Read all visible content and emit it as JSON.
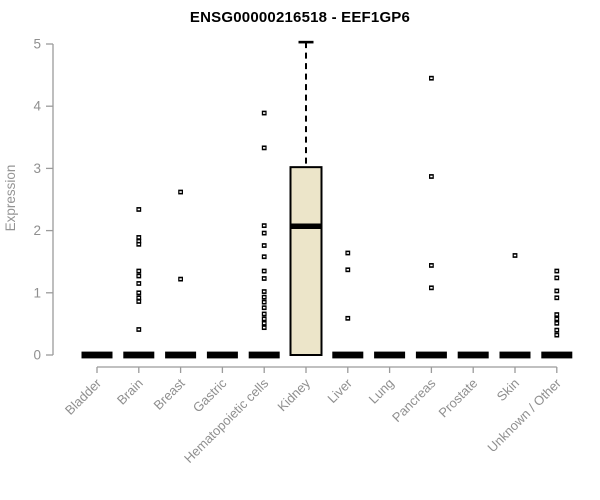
{
  "chart_data": {
    "type": "boxplot",
    "title": "ENSG00000216518 - EEF1GP6",
    "ylabel": "Expression",
    "xlabel": "",
    "ylim": [
      0,
      5
    ],
    "yticks": [
      0,
      1,
      2,
      3,
      4,
      5
    ],
    "grid": false,
    "legend": "none",
    "categories": [
      "Bladder",
      "Brain",
      "Breast",
      "Gastric",
      "Hematopoietic cells",
      "Kidney",
      "Liver",
      "Lung",
      "Pancreas",
      "Prostate",
      "Skin",
      "Unknown / Other"
    ],
    "series": [
      {
        "category": "Bladder",
        "q1": 0,
        "median": 0,
        "q3": 0,
        "whisker_low": 0,
        "whisker_high": 0,
        "outliers": []
      },
      {
        "category": "Brain",
        "q1": 0,
        "median": 0,
        "q3": 0,
        "whisker_low": 0,
        "whisker_high": 0,
        "outliers": [
          2.34,
          1.89,
          1.83,
          1.78,
          1.35,
          1.27,
          1.15,
          1.0,
          0.92,
          0.86,
          0.41
        ]
      },
      {
        "category": "Breast",
        "q1": 0,
        "median": 0,
        "q3": 0,
        "whisker_low": 0,
        "whisker_high": 0,
        "outliers": [
          2.62,
          1.22
        ]
      },
      {
        "category": "Gastric",
        "q1": 0,
        "median": 0,
        "q3": 0,
        "whisker_low": 0,
        "whisker_high": 0,
        "outliers": []
      },
      {
        "category": "Hematopoietic cells",
        "q1": 0,
        "median": 0,
        "q3": 0,
        "whisker_low": 0,
        "whisker_high": 0,
        "outliers": [
          3.89,
          3.33,
          2.08,
          1.96,
          1.76,
          1.58,
          1.35,
          1.23,
          1.02,
          0.93,
          0.85,
          0.76,
          0.66,
          0.58,
          0.51,
          0.44
        ]
      },
      {
        "category": "Kidney",
        "q1": 0,
        "median": 2.07,
        "q3": 3.02,
        "whisker_low": 0,
        "whisker_high": 5.03,
        "outliers": []
      },
      {
        "category": "Liver",
        "q1": 0,
        "median": 0,
        "q3": 0,
        "whisker_low": 0,
        "whisker_high": 0,
        "outliers": [
          1.64,
          1.37,
          0.59
        ]
      },
      {
        "category": "Lung",
        "q1": 0,
        "median": 0,
        "q3": 0,
        "whisker_low": 0,
        "whisker_high": 0,
        "outliers": []
      },
      {
        "category": "Pancreas",
        "q1": 0,
        "median": 0,
        "q3": 0,
        "whisker_low": 0,
        "whisker_high": 0,
        "outliers": [
          4.45,
          2.87,
          1.44,
          1.08
        ]
      },
      {
        "category": "Prostate",
        "q1": 0,
        "median": 0,
        "q3": 0,
        "whisker_low": 0,
        "whisker_high": 0,
        "outliers": []
      },
      {
        "category": "Skin",
        "q1": 0,
        "median": 0,
        "q3": 0,
        "whisker_low": 0,
        "whisker_high": 0,
        "outliers": [
          1.6
        ]
      },
      {
        "category": "Unknown / Other",
        "q1": 0,
        "median": 0,
        "q3": 0,
        "whisker_low": 0,
        "whisker_high": 0,
        "outliers": [
          1.35,
          1.24,
          1.03,
          0.92,
          0.65,
          0.58,
          0.51,
          0.4,
          0.32
        ]
      }
    ],
    "colors": {
      "box_fill": "#ECE5C9",
      "box_stroke": "#000000",
      "median": "#000000",
      "outlier": "#000000",
      "axis": "#9B9B9B",
      "tick_label": "#8F8F8F",
      "title": "#000000",
      "background": "#FFFFFF"
    }
  }
}
